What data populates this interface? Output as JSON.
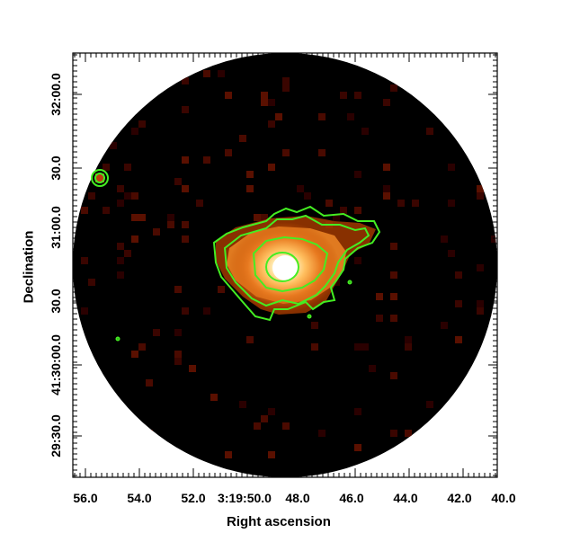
{
  "image": {
    "kind": "astronomical-xray-image",
    "colormap": [
      "#000000",
      "#3a0000",
      "#7a1a00",
      "#c04a00",
      "#f08a20",
      "#ffd070",
      "#ffffff"
    ],
    "contour_color": "#44ee22",
    "frame_color": "#000000"
  },
  "axes": {
    "x_label": "Right ascension",
    "y_label": "Declination",
    "x_ticks": [
      "56.0",
      "54.0",
      "52.0",
      "3:19:50.0",
      "48.0",
      "46.0",
      "44.0",
      "42.0",
      "40.0"
    ],
    "y_ticks": [
      "32:00.0",
      "30.0",
      "31:00.0",
      "30.0",
      "41:30:00.0",
      "29:30.0"
    ]
  }
}
